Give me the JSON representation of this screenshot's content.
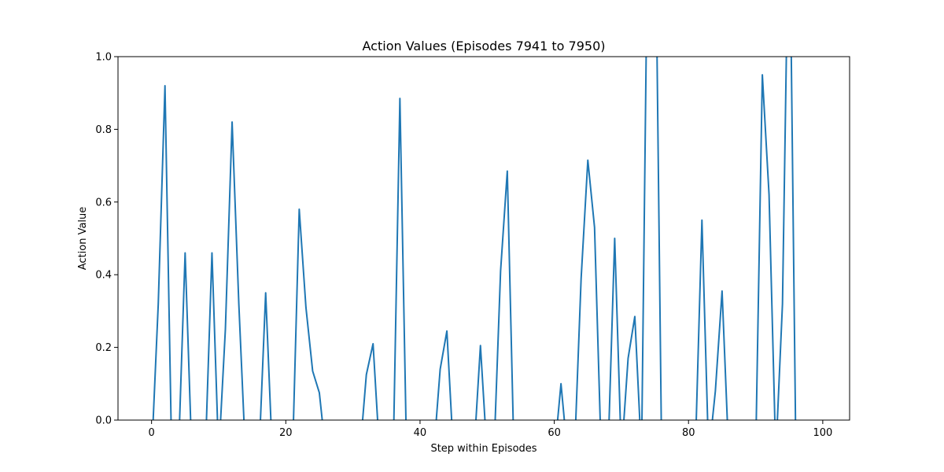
{
  "chart_data": {
    "type": "line",
    "title": "Action Values (Episodes 7941 to 7950)",
    "xlabel": "Step within Episodes",
    "ylabel": "Action Value",
    "xlim": [
      -5,
      104
    ],
    "ylim": [
      0,
      1.0
    ],
    "xticks": [
      0,
      20,
      40,
      60,
      80,
      100
    ],
    "yticks": [
      0.0,
      0.2,
      0.4,
      0.6,
      0.8,
      1.0
    ],
    "xtick_labels": [
      "0",
      "20",
      "40",
      "60",
      "80",
      "100"
    ],
    "ytick_labels": [
      "0.0",
      "0.2",
      "0.4",
      "0.6",
      "0.8",
      "1.0"
    ],
    "grid": false,
    "color": "#1f77b4",
    "series": [
      {
        "x": [
          0,
          1,
          2,
          3,
          4,
          5,
          6,
          7,
          8,
          9,
          10,
          11,
          12,
          13,
          14,
          15,
          16,
          17,
          18,
          19,
          20,
          21,
          22,
          23,
          24,
          25,
          26,
          27,
          28,
          29,
          30,
          31,
          32,
          33,
          34,
          35,
          36,
          37,
          38,
          39,
          40,
          41,
          42,
          43,
          44,
          45,
          46,
          47,
          48,
          49,
          50,
          51,
          52,
          53,
          54,
          55,
          56,
          57,
          58,
          59,
          60,
          61,
          62,
          63,
          64,
          65,
          66,
          67,
          68,
          69,
          70,
          71,
          72,
          73,
          74,
          75,
          76,
          77,
          78,
          79,
          80,
          81,
          82,
          83,
          84,
          85,
          86,
          87,
          88,
          89,
          90,
          91,
          92,
          93,
          94,
          95,
          96,
          97,
          98,
          99,
          100
        ],
        "y": [
          -0.1,
          0.32,
          0.92,
          -0.1,
          -0.1,
          0.46,
          -0.1,
          -0.1,
          -0.1,
          0.46,
          -0.1,
          0.25,
          0.82,
          0.32,
          -0.1,
          -0.1,
          -0.1,
          0.35,
          -0.1,
          -0.1,
          -0.1,
          -0.1,
          0.58,
          0.31,
          0.135,
          0.075,
          -0.1,
          -0.1,
          -0.1,
          -0.1,
          -0.1,
          -0.1,
          0.125,
          0.21,
          -0.1,
          -0.1,
          -0.1,
          0.885,
          -0.1,
          -0.1,
          -0.1,
          -0.1,
          -0.1,
          0.14,
          0.245,
          -0.1,
          -0.1,
          -0.1,
          -0.1,
          0.205,
          -0.1,
          -0.1,
          0.41,
          0.685,
          -0.1,
          -0.1,
          -0.1,
          -0.1,
          -0.1,
          -0.1,
          -0.1,
          0.1,
          -0.1,
          -0.1,
          0.39,
          0.715,
          0.53,
          -0.1,
          -0.1,
          0.5,
          -0.1,
          0.17,
          0.285,
          -0.1,
          1.5,
          1.5,
          -0.1,
          -0.1,
          -0.1,
          -0.1,
          -0.1,
          -0.1,
          0.55,
          -0.1,
          0.08,
          0.355,
          -0.1,
          -0.1,
          -0.1,
          -0.1,
          -0.1,
          0.95,
          0.62,
          -0.1,
          0.32,
          1.5,
          -0.1,
          -0.1,
          -0.1,
          -0.1,
          -0.1
        ]
      }
    ]
  }
}
